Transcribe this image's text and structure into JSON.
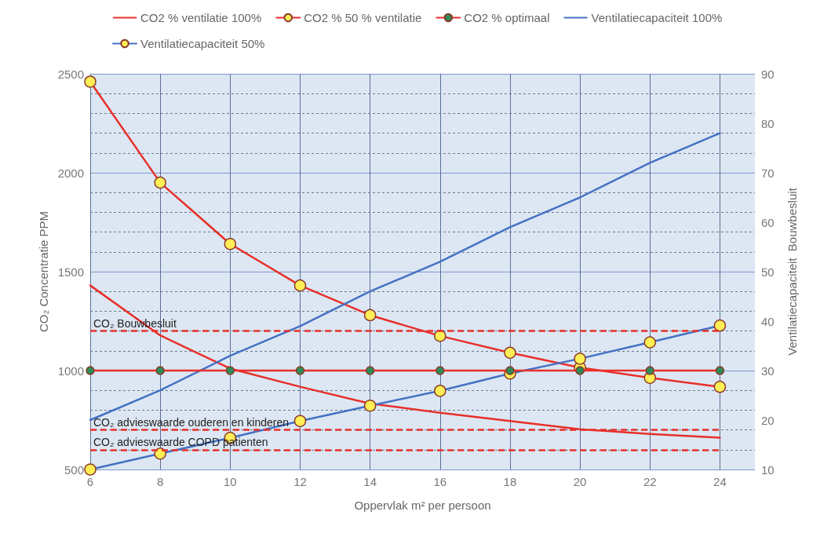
{
  "chart_data": {
    "type": "line",
    "xlabel": "Oppervlak m² per persoon",
    "ylabel": "CO₂ Concentratie PPM",
    "y2label": "Ventilatiecapaciteit  Bouwbesluit",
    "x": [
      6,
      8,
      10,
      12,
      14,
      16,
      18,
      20,
      22,
      24
    ],
    "xlim": [
      6,
      25
    ],
    "xticks": [
      6,
      8,
      10,
      12,
      14,
      16,
      18,
      20,
      22,
      24
    ],
    "ylim": [
      500,
      2500
    ],
    "yticks": [
      500,
      1000,
      1500,
      2000,
      2500
    ],
    "y2lim": [
      10,
      90
    ],
    "y2ticks": [
      10,
      20,
      30,
      40,
      50,
      60,
      70,
      80,
      90
    ],
    "grid": true,
    "legend": "top",
    "line_style": "solid",
    "series": [
      {
        "name": "CO2 % ventilatie 100%",
        "color": "#e8302a",
        "marker": "none",
        "values": [
          1430,
          1178,
          1010,
          918,
          833,
          787,
          745,
          703,
          680,
          661
        ]
      },
      {
        "name": "CO2 % 50 % ventilatie",
        "color": "#e8302a",
        "marker": "circle",
        "colors": [
          "#ffee55",
          "#ffee55",
          "#ffee55",
          "#ffee55",
          "#ffee55",
          "#ffee55",
          "#ffee55",
          "#ffee55",
          "#ffee55",
          "#ffee55"
        ],
        "values": [
          2460,
          1950,
          1640,
          1430,
          1280,
          1175,
          1090,
          1015,
          963,
          918
        ]
      },
      {
        "name": "CO2 % optimaal",
        "color": "#e8302a",
        "marker": "circle",
        "colors": [
          "#2e8b57",
          "#2e8b57",
          "#2e8b57",
          "#2e8b57",
          "#2e8b57",
          "#2e8b57",
          "#2e8b57",
          "#2e8b57",
          "#2e8b57",
          "#2e8b57"
        ],
        "values": [
          1000,
          1000,
          1000,
          1000,
          1000,
          1000,
          1000,
          1000,
          1000,
          1000
        ]
      },
      {
        "name": "Ventilatiecapaciteit 100%",
        "color": "#4472c4",
        "marker": "none",
        "axis": "y2",
        "values": [
          20,
          26,
          33,
          39,
          46,
          52,
          59,
          65,
          72,
          78
        ]
      },
      {
        "name": "Ventilatiecapaciteit 50%",
        "color": "#4472c4",
        "marker": "circle",
        "axis": "y2",
        "colors": [
          "#ffee55",
          "#ffee55",
          "#ffee55",
          "#ffee55",
          "#ffee55",
          "#ffee55",
          "#ffee55",
          "#ffee55",
          "#ffee55",
          "#ffee55"
        ],
        "values": [
          10,
          13.2,
          16.4,
          19.8,
          22.9,
          25.9,
          29.4,
          32.4,
          35.7,
          39.1
        ]
      }
    ],
    "ref_lines": [
      {
        "axis": "y",
        "value": 1200,
        "label": "CO₂ Bouwbesluit",
        "color": "#e8302a",
        "line_style": "dashed"
      },
      {
        "axis": "y",
        "value": 700,
        "label": "CO₂ advieswaarde ouderen en kinderen",
        "color": "#e8302a",
        "line_style": "dashed"
      },
      {
        "axis": "y",
        "value": 600,
        "label": "CO₂ advieswaarde COPD patienten",
        "color": "#e8302a",
        "line_style": "dashed"
      }
    ]
  }
}
